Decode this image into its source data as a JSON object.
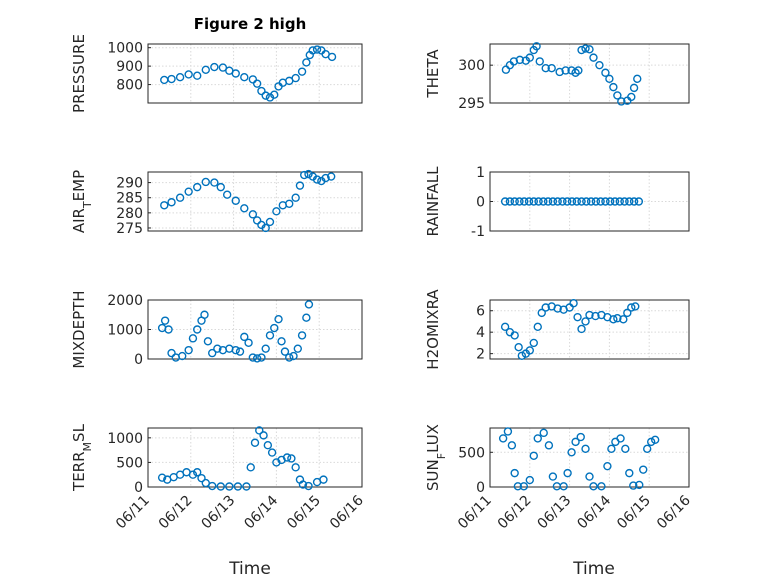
{
  "figure": {
    "title": "Figure 2 high",
    "xlabel": "Time",
    "marker_color": "#0072BD"
  },
  "chart_data": [
    {
      "type": "scatter",
      "panel": "PRESSURE",
      "ylabel": "PRESSURE",
      "ylim": [
        700,
        1020
      ],
      "yticks": [
        "800",
        "900",
        "1000"
      ],
      "ytick_values": [
        800,
        900,
        1000
      ],
      "xlim": [
        "06/11",
        "06/16"
      ],
      "xticks": [],
      "points": [
        [
          11.38,
          825
        ],
        [
          11.55,
          830
        ],
        [
          11.75,
          840
        ],
        [
          11.95,
          855
        ],
        [
          12.15,
          848
        ],
        [
          12.35,
          880
        ],
        [
          12.55,
          895
        ],
        [
          12.75,
          892
        ],
        [
          12.9,
          875
        ],
        [
          13.05,
          860
        ],
        [
          13.25,
          840
        ],
        [
          13.45,
          828
        ],
        [
          13.55,
          805
        ],
        [
          13.65,
          765
        ],
        [
          13.75,
          740
        ],
        [
          13.85,
          730
        ],
        [
          13.95,
          745
        ],
        [
          14.05,
          790
        ],
        [
          14.15,
          810
        ],
        [
          14.3,
          820
        ],
        [
          14.45,
          835
        ],
        [
          14.6,
          870
        ],
        [
          14.7,
          920
        ],
        [
          14.78,
          960
        ],
        [
          14.85,
          985
        ],
        [
          14.95,
          990
        ],
        [
          15.05,
          985
        ],
        [
          15.15,
          965
        ],
        [
          15.3,
          950
        ]
      ]
    },
    {
      "type": "scatter",
      "panel": "THETA",
      "ylabel": "THETA",
      "ylim": [
        295,
        302.8
      ],
      "yticks": [
        "295",
        "300"
      ],
      "ytick_values": [
        295,
        300
      ],
      "xlim": [
        "06/11",
        "06/16"
      ],
      "xticks": [],
      "points": [
        [
          11.4,
          299.4
        ],
        [
          11.5,
          300
        ],
        [
          11.6,
          300.5
        ],
        [
          11.75,
          300.7
        ],
        [
          11.9,
          300.6
        ],
        [
          12.0,
          301
        ],
        [
          12.1,
          302
        ],
        [
          12.17,
          302.5
        ],
        [
          12.25,
          300.5
        ],
        [
          12.4,
          299.6
        ],
        [
          12.55,
          299.6
        ],
        [
          12.75,
          299.1
        ],
        [
          12.9,
          299.3
        ],
        [
          13.05,
          299.3
        ],
        [
          13.15,
          299
        ],
        [
          13.22,
          299.3
        ],
        [
          13.3,
          302
        ],
        [
          13.4,
          302.2
        ],
        [
          13.5,
          302.1
        ],
        [
          13.6,
          301
        ],
        [
          13.75,
          300
        ],
        [
          13.9,
          299
        ],
        [
          14.0,
          298.2
        ],
        [
          14.1,
          297.1
        ],
        [
          14.2,
          296
        ],
        [
          14.3,
          295.2
        ],
        [
          14.45,
          295.3
        ],
        [
          14.55,
          295.8
        ],
        [
          14.62,
          297
        ],
        [
          14.7,
          298.2
        ]
      ]
    },
    {
      "type": "scatter",
      "panel": "AIR_TEMP",
      "ylabel": "AIR_TEMP",
      "ylim": [
        274,
        293.5
      ],
      "yticks": [
        "275",
        "280",
        "285",
        "290"
      ],
      "ytick_values": [
        275,
        280,
        285,
        290
      ],
      "xlim": [
        "06/11",
        "06/16"
      ],
      "xticks": [],
      "points": [
        [
          11.38,
          282.5
        ],
        [
          11.55,
          283.5
        ],
        [
          11.75,
          285
        ],
        [
          11.95,
          287
        ],
        [
          12.15,
          288.5
        ],
        [
          12.35,
          290.2
        ],
        [
          12.55,
          290
        ],
        [
          12.7,
          288.5
        ],
        [
          12.85,
          286
        ],
        [
          13.05,
          284
        ],
        [
          13.25,
          281.5
        ],
        [
          13.45,
          279.5
        ],
        [
          13.55,
          277.5
        ],
        [
          13.65,
          276
        ],
        [
          13.75,
          275
        ],
        [
          13.85,
          277
        ],
        [
          14.0,
          280.5
        ],
        [
          14.15,
          282.5
        ],
        [
          14.3,
          283
        ],
        [
          14.45,
          285
        ],
        [
          14.55,
          289
        ],
        [
          14.65,
          292.5
        ],
        [
          14.75,
          292.8
        ],
        [
          14.85,
          292
        ],
        [
          14.95,
          291
        ],
        [
          15.05,
          290.5
        ],
        [
          15.15,
          291.5
        ],
        [
          15.28,
          292
        ]
      ]
    },
    {
      "type": "scatter",
      "panel": "RAINFALL",
      "ylabel": "RAINFALL",
      "ylim": [
        -1,
        1
      ],
      "yticks": [
        "-1",
        "0",
        "1"
      ],
      "ytick_values": [
        -1,
        0,
        1
      ],
      "xlim": [
        "06/11",
        "06/16"
      ],
      "xticks": [],
      "points": [
        [
          11.38,
          0
        ],
        [
          11.5,
          0
        ],
        [
          11.62,
          0
        ],
        [
          11.74,
          0
        ],
        [
          11.86,
          0
        ],
        [
          11.98,
          0
        ],
        [
          12.1,
          0
        ],
        [
          12.22,
          0
        ],
        [
          12.34,
          0
        ],
        [
          12.46,
          0
        ],
        [
          12.58,
          0
        ],
        [
          12.7,
          0
        ],
        [
          12.82,
          0
        ],
        [
          12.94,
          0
        ],
        [
          13.06,
          0
        ],
        [
          13.18,
          0
        ],
        [
          13.3,
          0
        ],
        [
          13.42,
          0
        ],
        [
          13.54,
          0
        ],
        [
          13.66,
          0
        ],
        [
          13.78,
          0
        ],
        [
          13.9,
          0
        ],
        [
          14.02,
          0
        ],
        [
          14.14,
          0
        ],
        [
          14.26,
          0
        ],
        [
          14.38,
          0
        ],
        [
          14.5,
          0
        ],
        [
          14.62,
          0
        ],
        [
          14.74,
          0
        ]
      ]
    },
    {
      "type": "scatter",
      "panel": "MIXDEPTH",
      "ylabel": "MIXDEPTH",
      "ylim": [
        0,
        2000
      ],
      "yticks": [
        "0",
        "1000",
        "2000"
      ],
      "ytick_values": [
        0,
        1000,
        2000
      ],
      "xlim": [
        "06/11",
        "06/16"
      ],
      "xticks": [],
      "points": [
        [
          11.33,
          1050
        ],
        [
          11.4,
          1300
        ],
        [
          11.48,
          1000
        ],
        [
          11.55,
          200
        ],
        [
          11.65,
          50
        ],
        [
          11.8,
          100
        ],
        [
          11.95,
          300
        ],
        [
          12.05,
          700
        ],
        [
          12.15,
          1000
        ],
        [
          12.25,
          1300
        ],
        [
          12.32,
          1500
        ],
        [
          12.4,
          600
        ],
        [
          12.5,
          200
        ],
        [
          12.62,
          350
        ],
        [
          12.75,
          300
        ],
        [
          12.9,
          350
        ],
        [
          13.05,
          300
        ],
        [
          13.15,
          250
        ],
        [
          13.25,
          750
        ],
        [
          13.35,
          550
        ],
        [
          13.45,
          50
        ],
        [
          13.55,
          20
        ],
        [
          13.65,
          50
        ],
        [
          13.75,
          350
        ],
        [
          13.85,
          800
        ],
        [
          13.95,
          1050
        ],
        [
          14.05,
          1350
        ],
        [
          14.12,
          600
        ],
        [
          14.2,
          250
        ],
        [
          14.3,
          50
        ],
        [
          14.4,
          100
        ],
        [
          14.5,
          350
        ],
        [
          14.6,
          800
        ],
        [
          14.7,
          1400
        ],
        [
          14.76,
          1850
        ]
      ]
    },
    {
      "type": "scatter",
      "panel": "H2OMIXRA",
      "ylabel": "H2OMIXRA",
      "ylim": [
        1.5,
        7
      ],
      "yticks": [
        "2",
        "4",
        "6"
      ],
      "ytick_values": [
        2,
        4,
        6
      ],
      "xlim": [
        "06/11",
        "06/16"
      ],
      "xticks": [],
      "points": [
        [
          11.38,
          4.5
        ],
        [
          11.5,
          4
        ],
        [
          11.62,
          3.7
        ],
        [
          11.72,
          2.6
        ],
        [
          11.8,
          1.8
        ],
        [
          11.9,
          2
        ],
        [
          12.0,
          2.3
        ],
        [
          12.1,
          3
        ],
        [
          12.2,
          4.5
        ],
        [
          12.3,
          5.8
        ],
        [
          12.4,
          6.3
        ],
        [
          12.55,
          6.4
        ],
        [
          12.7,
          6.2
        ],
        [
          12.85,
          6.1
        ],
        [
          13.0,
          6.3
        ],
        [
          13.1,
          6.7
        ],
        [
          13.2,
          5.4
        ],
        [
          13.3,
          4.3
        ],
        [
          13.4,
          5
        ],
        [
          13.5,
          5.6
        ],
        [
          13.65,
          5.5
        ],
        [
          13.8,
          5.6
        ],
        [
          13.95,
          5.4
        ],
        [
          14.1,
          5.2
        ],
        [
          14.2,
          5.3
        ],
        [
          14.35,
          5.2
        ],
        [
          14.45,
          5.8
        ],
        [
          14.55,
          6.3
        ],
        [
          14.65,
          6.4
        ]
      ]
    },
    {
      "type": "scatter",
      "panel": "TERR_MSL",
      "ylabel": "TERR_MSL",
      "ylim": [
        0,
        1200
      ],
      "yticks": [
        "0",
        "500",
        "1000"
      ],
      "ytick_values": [
        0,
        500,
        1000
      ],
      "xlim": [
        "06/11",
        "06/16"
      ],
      "xticks": [
        "06/11",
        "06/12",
        "06/13",
        "06/14",
        "06/15",
        "06/16"
      ],
      "points": [
        [
          11.33,
          190
        ],
        [
          11.45,
          150
        ],
        [
          11.6,
          200
        ],
        [
          11.75,
          250
        ],
        [
          11.9,
          300
        ],
        [
          12.05,
          250
        ],
        [
          12.15,
          300
        ],
        [
          12.25,
          180
        ],
        [
          12.35,
          80
        ],
        [
          12.5,
          20
        ],
        [
          12.7,
          10
        ],
        [
          12.9,
          10
        ],
        [
          13.1,
          10
        ],
        [
          13.3,
          10
        ],
        [
          13.4,
          400
        ],
        [
          13.5,
          900
        ],
        [
          13.6,
          1150
        ],
        [
          13.7,
          1050
        ],
        [
          13.8,
          850
        ],
        [
          13.9,
          700
        ],
        [
          14.0,
          500
        ],
        [
          14.12,
          550
        ],
        [
          14.25,
          600
        ],
        [
          14.35,
          580
        ],
        [
          14.45,
          400
        ],
        [
          14.55,
          150
        ],
        [
          14.62,
          50
        ],
        [
          14.75,
          20
        ],
        [
          14.95,
          100
        ],
        [
          15.1,
          150
        ]
      ]
    },
    {
      "type": "scatter",
      "panel": "SUN_FLUX",
      "ylabel": "SUN_FLUX",
      "ylim": [
        0,
        850
      ],
      "yticks": [
        "0",
        "500"
      ],
      "ytick_values": [
        0,
        500
      ],
      "xlim": [
        "06/11",
        "06/16"
      ],
      "xticks": [
        "06/11",
        "06/12",
        "06/13",
        "06/14",
        "06/15",
        "06/16"
      ],
      "points": [
        [
          11.33,
          700
        ],
        [
          11.45,
          800
        ],
        [
          11.55,
          600
        ],
        [
          11.62,
          200
        ],
        [
          11.7,
          10
        ],
        [
          11.85,
          10
        ],
        [
          12.0,
          100
        ],
        [
          12.1,
          450
        ],
        [
          12.2,
          700
        ],
        [
          12.35,
          780
        ],
        [
          12.48,
          600
        ],
        [
          12.58,
          150
        ],
        [
          12.68,
          10
        ],
        [
          12.85,
          10
        ],
        [
          12.95,
          200
        ],
        [
          13.05,
          500
        ],
        [
          13.15,
          650
        ],
        [
          13.28,
          720
        ],
        [
          13.4,
          550
        ],
        [
          13.5,
          150
        ],
        [
          13.6,
          10
        ],
        [
          13.8,
          10
        ],
        [
          13.95,
          300
        ],
        [
          14.05,
          550
        ],
        [
          14.15,
          650
        ],
        [
          14.28,
          700
        ],
        [
          14.4,
          550
        ],
        [
          14.5,
          200
        ],
        [
          14.6,
          20
        ],
        [
          14.75,
          30
        ],
        [
          14.85,
          250
        ],
        [
          14.95,
          550
        ],
        [
          15.05,
          650
        ],
        [
          15.15,
          680
        ]
      ]
    }
  ]
}
